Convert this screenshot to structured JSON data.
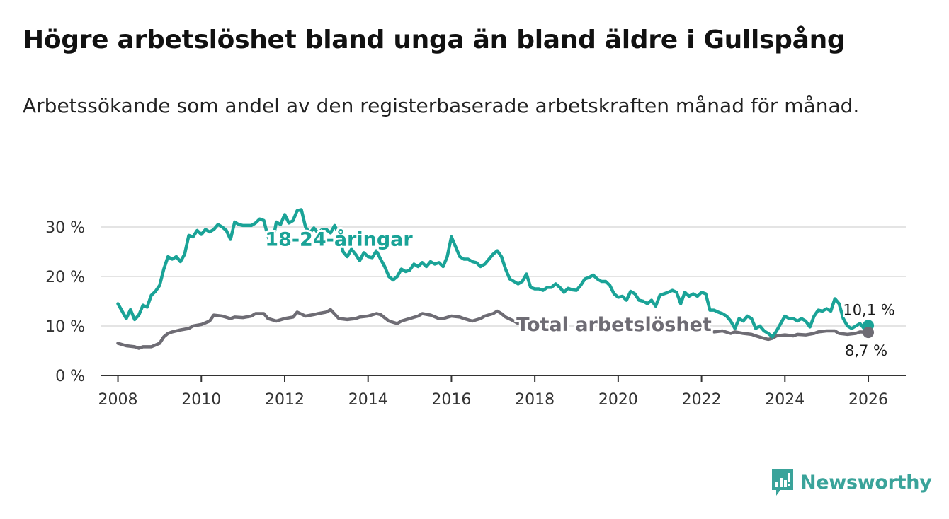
{
  "header": {
    "title": "Högre arbetslöshet bland unga än bland äldre i Gullspång",
    "subtitle": "Arbetssökande som andel av den registerbaserade arbetskraften månad för månad."
  },
  "brand": {
    "name": "Newsworthy",
    "color": "#3aa39a"
  },
  "chart_data": {
    "type": "line",
    "title": "Högre arbetslöshet bland unga än bland äldre i Gullspång",
    "xlabel": "",
    "ylabel": "",
    "xlim": [
      2007.6,
      2026.9
    ],
    "ylim": [
      0,
      33
    ],
    "x_ticks": [
      2008,
      2010,
      2012,
      2014,
      2016,
      2018,
      2020,
      2022,
      2024,
      2026
    ],
    "x_tick_labels": [
      "2008",
      "2010",
      "2012",
      "2014",
      "2016",
      "2018",
      "2020",
      "2022",
      "2024",
      "2026"
    ],
    "y_ticks": [
      0,
      10,
      20,
      30
    ],
    "y_tick_labels": [
      "0 %",
      "10 %",
      "20 %",
      "30 %"
    ],
    "grid": true,
    "series": [
      {
        "name": "18-24-åringar",
        "color": "#1aa397",
        "label_text": "18-24-åringar",
        "end_value": 10.1,
        "end_label": "10,1 %",
        "points": [
          [
            2008.0,
            14.5
          ],
          [
            2008.1,
            13.0
          ],
          [
            2008.2,
            11.5
          ],
          [
            2008.3,
            13.3
          ],
          [
            2008.4,
            11.3
          ],
          [
            2008.5,
            12.2
          ],
          [
            2008.6,
            14.2
          ],
          [
            2008.7,
            13.8
          ],
          [
            2008.8,
            16.2
          ],
          [
            2008.9,
            17.0
          ],
          [
            2009.0,
            18.2
          ],
          [
            2009.1,
            21.5
          ],
          [
            2009.2,
            24.0
          ],
          [
            2009.3,
            23.5
          ],
          [
            2009.4,
            24.0
          ],
          [
            2009.5,
            23.0
          ],
          [
            2009.6,
            24.5
          ],
          [
            2009.7,
            28.3
          ],
          [
            2009.8,
            28.0
          ],
          [
            2009.9,
            29.3
          ],
          [
            2010.0,
            28.5
          ],
          [
            2010.1,
            29.5
          ],
          [
            2010.2,
            29.0
          ],
          [
            2010.3,
            29.5
          ],
          [
            2010.4,
            30.5
          ],
          [
            2010.5,
            30.0
          ],
          [
            2010.6,
            29.3
          ],
          [
            2010.7,
            27.5
          ],
          [
            2010.8,
            31.0
          ],
          [
            2010.9,
            30.5
          ],
          [
            2011.0,
            30.3
          ],
          [
            2011.2,
            30.3
          ],
          [
            2011.3,
            30.8
          ],
          [
            2011.4,
            31.6
          ],
          [
            2011.5,
            31.3
          ],
          [
            2011.6,
            28.0
          ],
          [
            2011.7,
            26.5
          ],
          [
            2011.8,
            31.0
          ],
          [
            2011.9,
            30.5
          ],
          [
            2012.0,
            32.5
          ],
          [
            2012.1,
            30.8
          ],
          [
            2012.2,
            31.3
          ],
          [
            2012.3,
            33.3
          ],
          [
            2012.4,
            33.5
          ],
          [
            2012.5,
            30.0
          ],
          [
            2012.6,
            28.8
          ],
          [
            2012.7,
            29.8
          ],
          [
            2012.8,
            28.8
          ],
          [
            2012.9,
            29.5
          ],
          [
            2013.0,
            29.5
          ],
          [
            2013.1,
            28.8
          ],
          [
            2013.2,
            30.3
          ],
          [
            2013.3,
            28.5
          ],
          [
            2013.4,
            25.0
          ],
          [
            2013.5,
            24.0
          ],
          [
            2013.6,
            25.5
          ],
          [
            2013.7,
            24.5
          ],
          [
            2013.8,
            23.2
          ],
          [
            2013.9,
            24.8
          ],
          [
            2014.0,
            24.0
          ],
          [
            2014.1,
            23.8
          ],
          [
            2014.2,
            25.2
          ],
          [
            2014.3,
            23.5
          ],
          [
            2014.4,
            22.0
          ],
          [
            2014.5,
            20.0
          ],
          [
            2014.6,
            19.3
          ],
          [
            2014.7,
            20.0
          ],
          [
            2014.8,
            21.5
          ],
          [
            2014.9,
            21.0
          ],
          [
            2015.0,
            21.3
          ],
          [
            2015.1,
            22.5
          ],
          [
            2015.2,
            22.0
          ],
          [
            2015.3,
            22.8
          ],
          [
            2015.4,
            22.0
          ],
          [
            2015.5,
            23.0
          ],
          [
            2015.6,
            22.5
          ],
          [
            2015.7,
            22.8
          ],
          [
            2015.8,
            22.0
          ],
          [
            2015.9,
            24.0
          ],
          [
            2016.0,
            28.0
          ],
          [
            2016.1,
            26.0
          ],
          [
            2016.2,
            24.0
          ],
          [
            2016.3,
            23.5
          ],
          [
            2016.4,
            23.5
          ],
          [
            2016.5,
            23.0
          ],
          [
            2016.6,
            22.8
          ],
          [
            2016.7,
            22.0
          ],
          [
            2016.8,
            22.5
          ],
          [
            2016.9,
            23.5
          ],
          [
            2017.0,
            24.5
          ],
          [
            2017.1,
            25.2
          ],
          [
            2017.2,
            24.0
          ],
          [
            2017.3,
            21.5
          ],
          [
            2017.4,
            19.5
          ],
          [
            2017.5,
            19.0
          ],
          [
            2017.6,
            18.5
          ],
          [
            2017.7,
            19.0
          ],
          [
            2017.8,
            20.5
          ],
          [
            2017.9,
            17.8
          ],
          [
            2018.0,
            17.5
          ],
          [
            2018.1,
            17.5
          ],
          [
            2018.2,
            17.2
          ],
          [
            2018.3,
            17.8
          ],
          [
            2018.4,
            17.8
          ],
          [
            2018.5,
            18.5
          ],
          [
            2018.6,
            17.8
          ],
          [
            2018.7,
            16.8
          ],
          [
            2018.8,
            17.6
          ],
          [
            2018.9,
            17.3
          ],
          [
            2019.0,
            17.2
          ],
          [
            2019.1,
            18.2
          ],
          [
            2019.2,
            19.5
          ],
          [
            2019.3,
            19.8
          ],
          [
            2019.4,
            20.3
          ],
          [
            2019.5,
            19.5
          ],
          [
            2019.6,
            19.0
          ],
          [
            2019.7,
            19.0
          ],
          [
            2019.8,
            18.2
          ],
          [
            2019.9,
            16.5
          ],
          [
            2020.0,
            15.8
          ],
          [
            2020.1,
            16.0
          ],
          [
            2020.2,
            15.2
          ],
          [
            2020.3,
            17.0
          ],
          [
            2020.4,
            16.5
          ],
          [
            2020.5,
            15.2
          ],
          [
            2020.6,
            15.0
          ],
          [
            2020.7,
            14.5
          ],
          [
            2020.8,
            15.2
          ],
          [
            2020.9,
            14.0
          ],
          [
            2021.0,
            16.2
          ],
          [
            2021.1,
            16.5
          ],
          [
            2021.2,
            16.8
          ],
          [
            2021.3,
            17.2
          ],
          [
            2021.4,
            16.8
          ],
          [
            2021.5,
            14.5
          ],
          [
            2021.6,
            16.8
          ],
          [
            2021.7,
            16.0
          ],
          [
            2021.8,
            16.5
          ],
          [
            2021.9,
            16.0
          ],
          [
            2022.0,
            16.8
          ],
          [
            2022.1,
            16.5
          ],
          [
            2022.2,
            13.2
          ],
          [
            2022.3,
            13.2
          ],
          [
            2022.4,
            12.8
          ],
          [
            2022.5,
            12.5
          ],
          [
            2022.6,
            12.0
          ],
          [
            2022.7,
            11.0
          ],
          [
            2022.8,
            9.5
          ],
          [
            2022.9,
            11.5
          ],
          [
            2023.0,
            11.0
          ],
          [
            2023.1,
            12.0
          ],
          [
            2023.2,
            11.5
          ],
          [
            2023.3,
            9.5
          ],
          [
            2023.4,
            10.0
          ],
          [
            2023.5,
            9.0
          ],
          [
            2023.6,
            8.5
          ],
          [
            2023.7,
            7.8
          ],
          [
            2023.8,
            9.0
          ],
          [
            2023.9,
            10.5
          ],
          [
            2024.0,
            12.0
          ],
          [
            2024.1,
            11.5
          ],
          [
            2024.2,
            11.5
          ],
          [
            2024.3,
            11.0
          ],
          [
            2024.4,
            11.5
          ],
          [
            2024.5,
            11.0
          ],
          [
            2024.6,
            9.8
          ],
          [
            2024.7,
            12.0
          ],
          [
            2024.8,
            13.2
          ],
          [
            2024.9,
            13.0
          ],
          [
            2025.0,
            13.5
          ],
          [
            2025.1,
            13.0
          ],
          [
            2025.2,
            15.5
          ],
          [
            2025.3,
            14.5
          ],
          [
            2025.4,
            11.5
          ],
          [
            2025.5,
            10.0
          ],
          [
            2025.6,
            9.5
          ],
          [
            2025.7,
            10.0
          ],
          [
            2025.8,
            10.5
          ],
          [
            2025.9,
            9.5
          ],
          [
            2026.0,
            10.1
          ]
        ]
      },
      {
        "name": "Total arbetslöshet",
        "color": "#6e6c74",
        "label_text": "Total arbetslöshet",
        "end_value": 8.7,
        "end_label": "8,7 %",
        "points": [
          [
            2008.0,
            6.5
          ],
          [
            2008.2,
            6.0
          ],
          [
            2008.4,
            5.8
          ],
          [
            2008.5,
            5.5
          ],
          [
            2008.6,
            5.8
          ],
          [
            2008.8,
            5.8
          ],
          [
            2009.0,
            6.5
          ],
          [
            2009.1,
            7.8
          ],
          [
            2009.2,
            8.5
          ],
          [
            2009.3,
            8.8
          ],
          [
            2009.5,
            9.2
          ],
          [
            2009.7,
            9.5
          ],
          [
            2009.8,
            10.0
          ],
          [
            2010.0,
            10.3
          ],
          [
            2010.2,
            11.0
          ],
          [
            2010.3,
            12.2
          ],
          [
            2010.5,
            12.0
          ],
          [
            2010.7,
            11.5
          ],
          [
            2010.8,
            11.8
          ],
          [
            2011.0,
            11.7
          ],
          [
            2011.2,
            12.0
          ],
          [
            2011.3,
            12.5
          ],
          [
            2011.5,
            12.5
          ],
          [
            2011.6,
            11.5
          ],
          [
            2011.8,
            11.0
          ],
          [
            2012.0,
            11.5
          ],
          [
            2012.2,
            11.8
          ],
          [
            2012.3,
            12.8
          ],
          [
            2012.5,
            12.0
          ],
          [
            2012.7,
            12.3
          ],
          [
            2012.8,
            12.5
          ],
          [
            2013.0,
            12.8
          ],
          [
            2013.1,
            13.3
          ],
          [
            2013.3,
            11.5
          ],
          [
            2013.5,
            11.3
          ],
          [
            2013.7,
            11.5
          ],
          [
            2013.8,
            11.8
          ],
          [
            2014.0,
            12.0
          ],
          [
            2014.2,
            12.5
          ],
          [
            2014.3,
            12.3
          ],
          [
            2014.5,
            11.0
          ],
          [
            2014.7,
            10.5
          ],
          [
            2014.8,
            11.0
          ],
          [
            2015.0,
            11.5
          ],
          [
            2015.2,
            12.0
          ],
          [
            2015.3,
            12.5
          ],
          [
            2015.5,
            12.2
          ],
          [
            2015.7,
            11.5
          ],
          [
            2015.8,
            11.5
          ],
          [
            2016.0,
            12.0
          ],
          [
            2016.2,
            11.8
          ],
          [
            2016.3,
            11.5
          ],
          [
            2016.5,
            11.0
          ],
          [
            2016.7,
            11.5
          ],
          [
            2016.8,
            12.0
          ],
          [
            2017.0,
            12.5
          ],
          [
            2017.1,
            13.0
          ],
          [
            2017.2,
            12.5
          ],
          [
            2017.3,
            11.8
          ],
          [
            2017.5,
            11.0
          ],
          [
            2017.6,
            10.5
          ],
          [
            2022.3,
            8.8
          ],
          [
            2022.5,
            9.0
          ],
          [
            2022.7,
            8.5
          ],
          [
            2022.8,
            8.8
          ],
          [
            2023.0,
            8.5
          ],
          [
            2023.2,
            8.3
          ],
          [
            2023.3,
            8.0
          ],
          [
            2023.5,
            7.5
          ],
          [
            2023.6,
            7.3
          ],
          [
            2023.7,
            7.5
          ],
          [
            2023.8,
            8.0
          ],
          [
            2024.0,
            8.2
          ],
          [
            2024.2,
            8.0
          ],
          [
            2024.3,
            8.3
          ],
          [
            2024.5,
            8.2
          ],
          [
            2024.7,
            8.5
          ],
          [
            2024.8,
            8.8
          ],
          [
            2025.0,
            9.0
          ],
          [
            2025.2,
            9.0
          ],
          [
            2025.3,
            8.5
          ],
          [
            2025.5,
            8.3
          ],
          [
            2025.7,
            8.5
          ],
          [
            2025.8,
            8.8
          ],
          [
            2026.0,
            8.7
          ]
        ]
      }
    ]
  }
}
